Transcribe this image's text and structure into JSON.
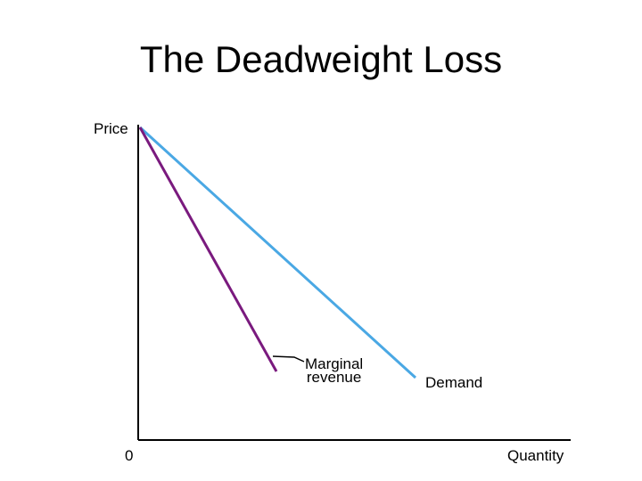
{
  "slide": {
    "title": "The Deadweight Loss"
  },
  "graph": {
    "y_axis_label": "Price",
    "x_axis_label": "Quantity",
    "origin_label": "0",
    "curves": {
      "demand": {
        "label": "Demand",
        "color": "#4aa8e4"
      },
      "marginal_revenue": {
        "label_line1": "Marginal",
        "label_line2": "revenue",
        "color": "#7a1a7e"
      }
    },
    "axis_color": "#000000"
  }
}
